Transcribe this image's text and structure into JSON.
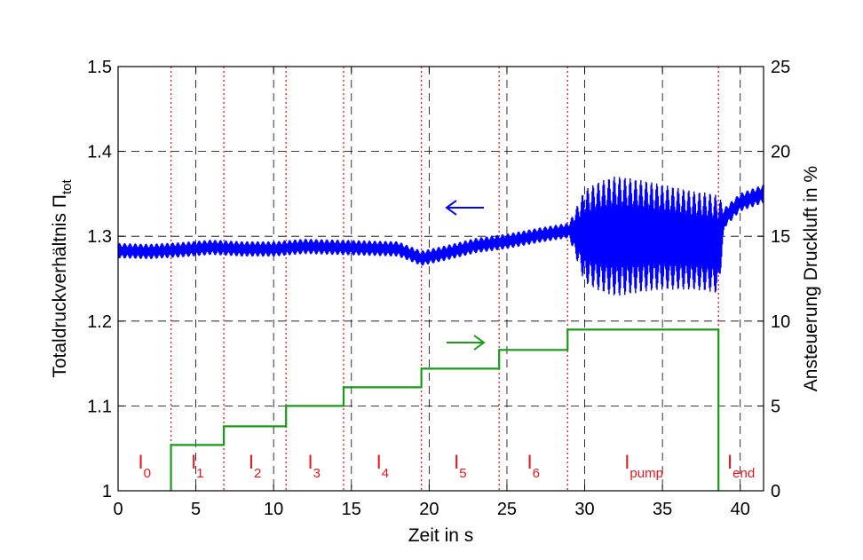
{
  "chart_data": {
    "type": "line",
    "xlabel": "Zeit in s",
    "ylabel_left": "Totaldruckverhältnis Π",
    "ylabel_left_sub": "tot",
    "ylabel_right": "Ansteuerung Druckluft in %",
    "xlim": [
      0,
      41.5
    ],
    "ylim_left": [
      1.0,
      1.5
    ],
    "ylim_right": [
      0,
      25
    ],
    "x_ticks": [
      0,
      5,
      10,
      15,
      20,
      25,
      30,
      35,
      40
    ],
    "y_left_ticks": [
      "1",
      "1.1",
      "1.2",
      "1.3",
      "1.4",
      "1.5"
    ],
    "y_right_ticks": [
      "0",
      "5",
      "10",
      "15",
      "20",
      "25"
    ],
    "grid": true,
    "series": [
      {
        "axis": "left",
        "color": "#0000ff",
        "arrow": "left",
        "x": [
          0,
          2,
          4,
          6,
          8,
          10,
          12,
          14,
          16,
          18,
          19.5,
          21,
          23,
          25,
          27,
          29,
          30,
          31,
          32,
          33,
          34,
          35,
          36,
          37,
          38,
          38.6,
          39,
          40,
          41.5
        ],
        "y": [
          1.283,
          1.282,
          1.284,
          1.287,
          1.285,
          1.285,
          1.288,
          1.287,
          1.286,
          1.285,
          1.274,
          1.28,
          1.289,
          1.294,
          1.301,
          1.307,
          1.3,
          1.3,
          1.3,
          1.3,
          1.3,
          1.299,
          1.297,
          1.295,
          1.293,
          1.29,
          1.322,
          1.34,
          1.35
        ],
        "amplitude": [
          0.009,
          0.009,
          0.009,
          0.009,
          0.009,
          0.009,
          0.009,
          0.009,
          0.009,
          0.009,
          0.009,
          0.009,
          0.009,
          0.009,
          0.009,
          0.009,
          0.055,
          0.065,
          0.071,
          0.068,
          0.065,
          0.062,
          0.06,
          0.058,
          0.058,
          0.058,
          0.012,
          0.011,
          0.011
        ]
      },
      {
        "axis": "right",
        "color": "#1a9a1a",
        "arrow": "right",
        "x": [
          3.4,
          3.4,
          6.8,
          6.8,
          10.8,
          10.8,
          14.5,
          14.5,
          19.5,
          19.5,
          24.5,
          24.5,
          28.9,
          28.9,
          38.6,
          38.6
        ],
        "y": [
          0,
          2.7,
          2.7,
          3.8,
          3.8,
          5.0,
          5.0,
          6.1,
          6.1,
          7.2,
          7.2,
          8.3,
          8.3,
          9.5,
          9.5,
          0
        ]
      }
    ],
    "interval_boundaries": [
      3.4,
      6.8,
      10.8,
      14.5,
      19.5,
      24.5,
      28.9,
      38.6
    ],
    "intervals": [
      {
        "label": "I",
        "sub": "0",
        "x": 1.7
      },
      {
        "label": "I",
        "sub": "1",
        "x": 5.1
      },
      {
        "label": "I",
        "sub": "2",
        "x": 8.8
      },
      {
        "label": "I",
        "sub": "3",
        "x": 12.6
      },
      {
        "label": "I",
        "sub": "4",
        "x": 17.0
      },
      {
        "label": "I",
        "sub": "5",
        "x": 22.0
      },
      {
        "label": "I",
        "sub": "6",
        "x": 26.7
      },
      {
        "label": "I",
        "sub": "pump",
        "x": 33.8
      },
      {
        "label": "I",
        "sub": "end",
        "x": 40.05
      }
    ],
    "colors": {
      "boundary": "#e8171d",
      "grid": "#000000"
    }
  }
}
